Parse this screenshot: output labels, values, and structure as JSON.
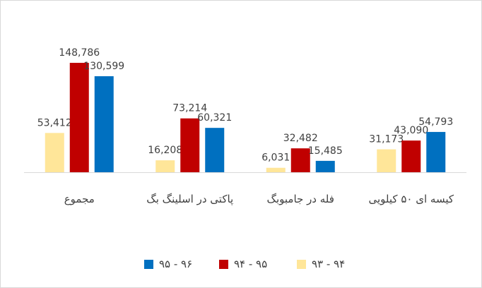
{
  "chart_data": {
    "type": "bar",
    "categories": [
      "مجموع",
      "پاکتی در اسلینگ بگ",
      "فله در جامبوبگ",
      "کیسه ای ۵۰ کیلویی"
    ],
    "series": [
      {
        "name": "۹۳ - ۹۴",
        "color": "#FFE699",
        "values": [
          53412,
          16208,
          6031,
          31173
        ],
        "value_labels": [
          "53,412",
          "16,208",
          "6,031",
          "31,173"
        ]
      },
      {
        "name": "۹۴ - ۹۵",
        "color": "#C00000",
        "values": [
          148786,
          73214,
          32482,
          43090
        ],
        "value_labels": [
          "148,786",
          "73,214",
          "32,482",
          "43,090"
        ]
      },
      {
        "name": "۹۵ - ۹۶",
        "color": "#0070C0",
        "values": [
          130599,
          60321,
          15485,
          54793
        ],
        "value_labels": [
          "130,599",
          "60,321",
          "15,485",
          "54,793"
        ]
      }
    ],
    "legend": "bottom"
  }
}
